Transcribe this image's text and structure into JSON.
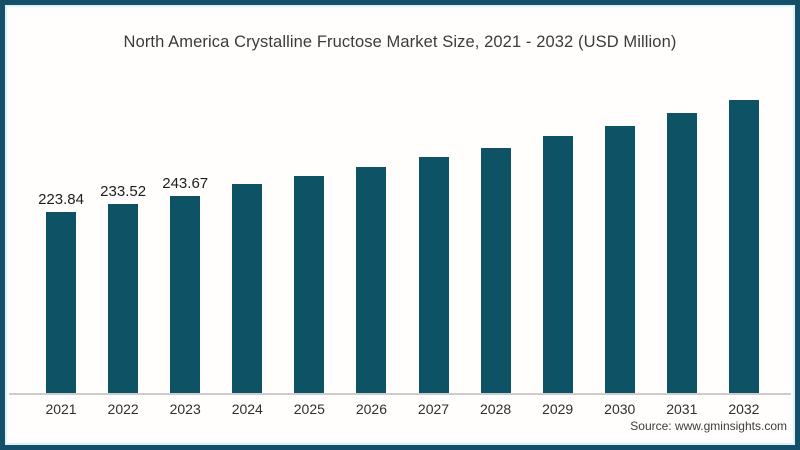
{
  "page": {
    "source": "Source: www.gminsights.com"
  },
  "colors": {
    "bar": "#0e5365",
    "frame_border": "#15506a",
    "frame_inner_edge": "#d8f0f9",
    "axis_line": "#cccccc",
    "title_text": "#3b3b3b",
    "tick_text": "#2f2f2f"
  },
  "chart_data": {
    "type": "bar",
    "title": "North America Crystalline Fructose Market Size, 2021 - 2032 (USD Million)",
    "categories": [
      "2021",
      "2022",
      "2023",
      "2024",
      "2025",
      "2026",
      "2027",
      "2028",
      "2029",
      "2030",
      "2031",
      "2032"
    ],
    "values": [
      223.84,
      233.52,
      243.67,
      258,
      268,
      279,
      291,
      303,
      317,
      330,
      345,
      362
    ],
    "data_labels": [
      "223.84",
      "233.52",
      "243.67",
      "",
      "",
      "",
      "",
      "",
      "",
      "",
      "",
      ""
    ],
    "xlabel": "",
    "ylabel": "",
    "ylim": [
      0,
      380
    ],
    "grid": false,
    "legend": false,
    "y_axis_visible": false,
    "note": "values for 2024-2032 estimated from bar pixel heights; only 2021-2023 carry printed data labels"
  }
}
